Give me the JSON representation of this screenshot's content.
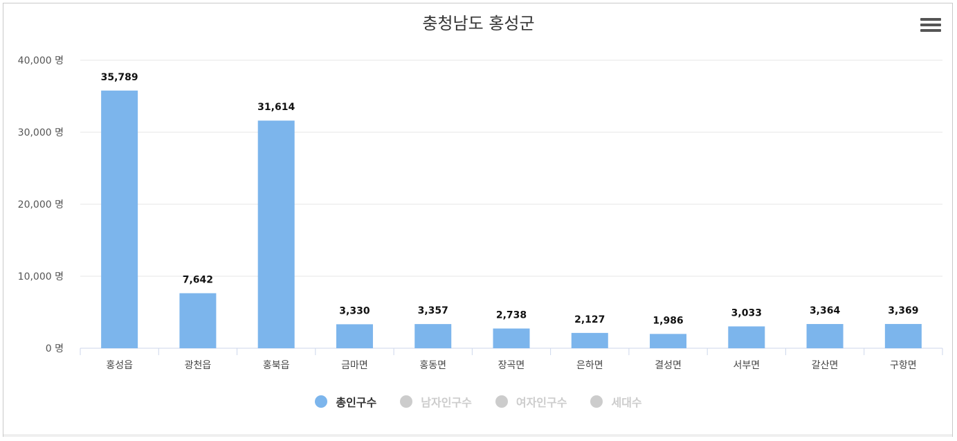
{
  "chart_data": {
    "type": "bar",
    "title": "충청남도 홍성군",
    "categories": [
      "홍성읍",
      "광천읍",
      "홍북읍",
      "금마면",
      "홍동면",
      "장곡면",
      "은하면",
      "결성면",
      "서부면",
      "갈산면",
      "구항면"
    ],
    "series": [
      {
        "name": "총인구수",
        "values": [
          35789,
          7642,
          31614,
          3330,
          3357,
          2738,
          2127,
          1986,
          3033,
          3364,
          3369
        ],
        "color": "#7cb5ec",
        "labels": [
          "35,789",
          "7,642",
          "31,614",
          "3,330",
          "3,357",
          "2,738",
          "2,127",
          "1,986",
          "3,033",
          "3,364",
          "3,369"
        ]
      }
    ],
    "ylim": [
      0,
      40000
    ],
    "yticks": [
      0,
      10000,
      20000,
      30000,
      40000
    ],
    "ytick_labels": [
      "0 명",
      "10,000 명",
      "20,000 명",
      "30,000 명",
      "40,000 명"
    ],
    "grid": true,
    "legend": {
      "placement": "bottom-center",
      "items": [
        {
          "label": "총인구수",
          "active": true,
          "color": "#7cb5ec",
          "text_color": "#333333"
        },
        {
          "label": "남자인구수",
          "active": false,
          "color": "#cccccc",
          "text_color": "#cccccc"
        },
        {
          "label": "여자인구수",
          "active": false,
          "color": "#cccccc",
          "text_color": "#cccccc"
        },
        {
          "label": "세대수",
          "active": false,
          "color": "#cccccc",
          "text_color": "#cccccc"
        }
      ]
    }
  },
  "menu_icon": "hamburger-menu-icon"
}
